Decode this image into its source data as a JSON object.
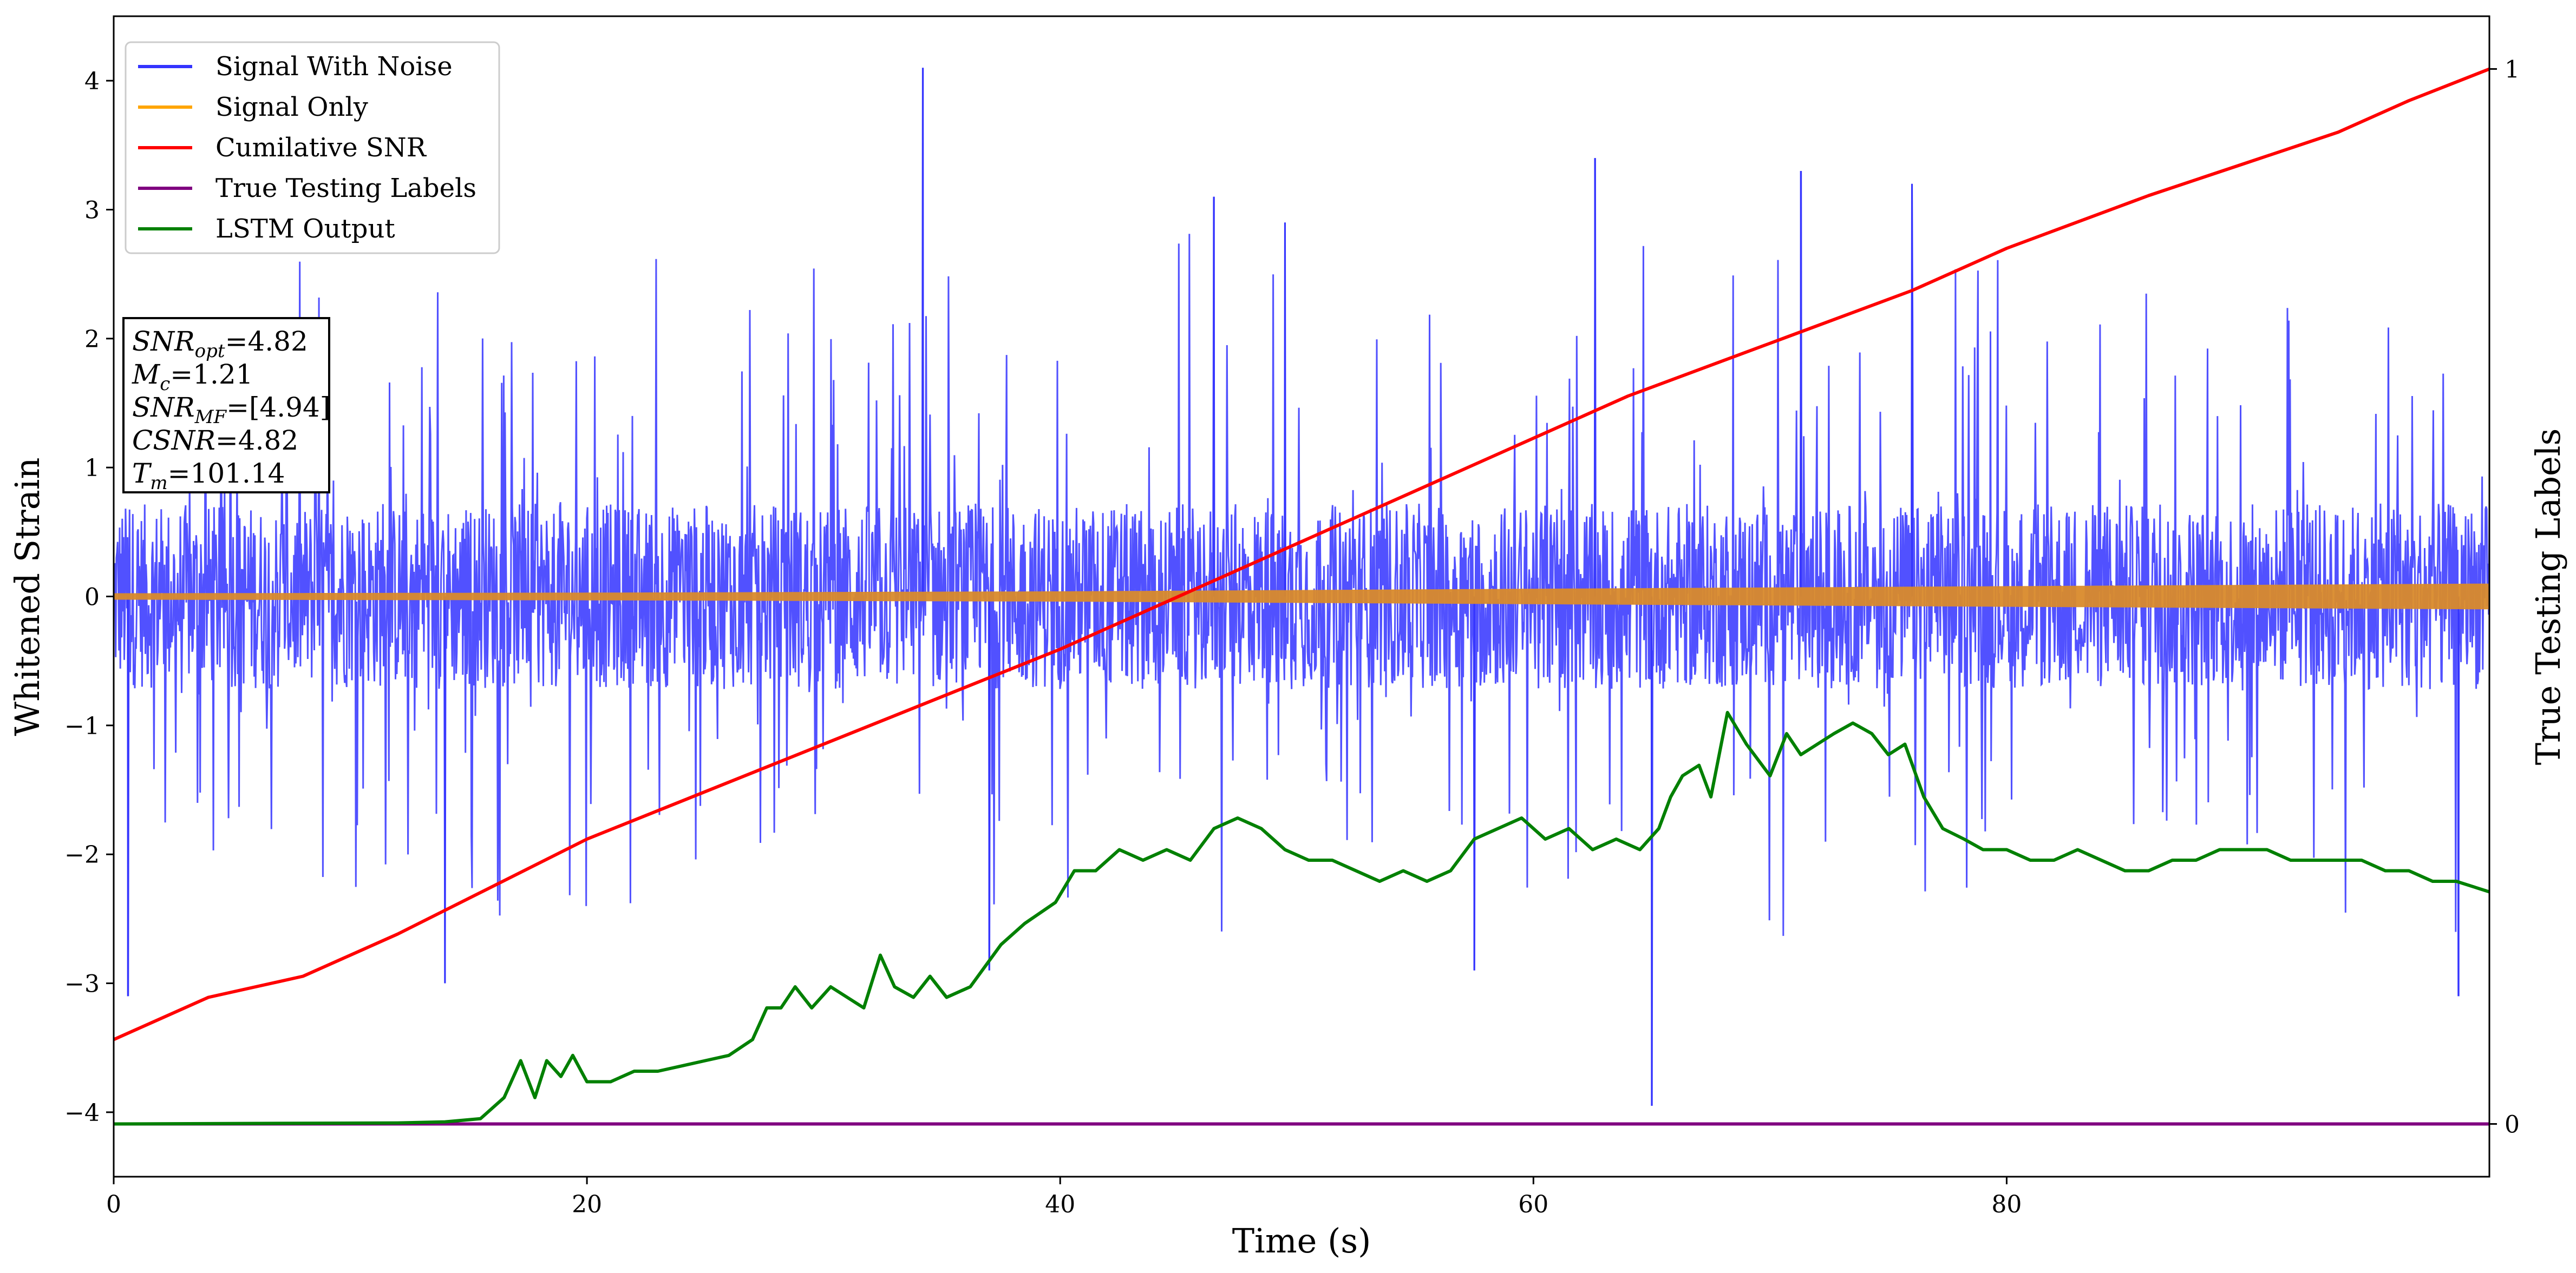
{
  "chart_data": {
    "type": "line",
    "xlabel": "Time (s)",
    "ylabel": "Whitened Strain",
    "y2label": "True Testing Labels",
    "xlim": [
      0,
      100.4
    ],
    "ylim": [
      -4.5,
      4.5
    ],
    "y2lim": [
      -0.05,
      1.05
    ],
    "xticks": [
      0,
      20,
      40,
      60,
      80
    ],
    "yticks": [
      -4,
      -3,
      -2,
      -1,
      0,
      1,
      2,
      3,
      4
    ],
    "y2ticks": [
      0,
      1
    ],
    "legend_position": "upper-left",
    "series": [
      {
        "name": "Signal With Noise",
        "axis": "left",
        "color": "#3333ff",
        "kind": "noise",
        "typical_amplitude": 1.6,
        "peaks": [
          {
            "x": 0.6,
            "y": -3.1
          },
          {
            "x": 14.0,
            "y": -3.0
          },
          {
            "x": 34.2,
            "y": 4.1
          },
          {
            "x": 37.0,
            "y": -2.9
          },
          {
            "x": 46.5,
            "y": 3.1
          },
          {
            "x": 49.5,
            "y": 2.9
          },
          {
            "x": 57.5,
            "y": -2.9
          },
          {
            "x": 62.6,
            "y": 3.4
          },
          {
            "x": 65.0,
            "y": -3.95
          },
          {
            "x": 71.3,
            "y": 3.3
          },
          {
            "x": 76.0,
            "y": 3.2
          },
          {
            "x": 99.1,
            "y": -3.1
          }
        ]
      },
      {
        "name": "Signal Only",
        "axis": "left",
        "color": "#ffa500",
        "kind": "envelope",
        "x": [
          0,
          20,
          40,
          60,
          80,
          100.4
        ],
        "amplitude": [
          0.025,
          0.03,
          0.04,
          0.06,
          0.08,
          0.1
        ]
      },
      {
        "name": "Cumilative SNR",
        "axis": "right",
        "color": "#ff0000",
        "x": [
          0,
          2,
          4,
          6,
          8,
          10,
          12,
          20,
          30,
          40,
          50,
          56,
          60,
          64,
          70,
          76,
          80,
          86,
          90,
          94,
          97,
          100.4
        ],
        "y": [
          0.08,
          0.1,
          0.12,
          0.13,
          0.14,
          0.16,
          0.18,
          0.27,
          0.36,
          0.45,
          0.55,
          0.61,
          0.65,
          0.69,
          0.74,
          0.79,
          0.83,
          0.88,
          0.91,
          0.94,
          0.97,
          1.0
        ]
      },
      {
        "name": "True Testing Labels",
        "axis": "right",
        "color": "#800080",
        "x": [
          0,
          100.4
        ],
        "y": [
          0,
          0
        ]
      },
      {
        "name": "LSTM Output",
        "axis": "right",
        "color": "#008000",
        "x": [
          0,
          12,
          14,
          15.5,
          16.5,
          17.2,
          17.8,
          18.3,
          18.9,
          19.4,
          20,
          21,
          22,
          23,
          24,
          25,
          26,
          27,
          27.6,
          28.2,
          28.8,
          29.5,
          30.3,
          31,
          31.7,
          32.4,
          33,
          33.8,
          34.5,
          35.2,
          36.2,
          37.5,
          38.5,
          39.8,
          40.6,
          41.5,
          42.5,
          43.5,
          44.5,
          45.5,
          46.5,
          47.5,
          48.5,
          49.5,
          50.5,
          51.5,
          52.5,
          53.5,
          54.5,
          55.5,
          56.5,
          57.5,
          58.5,
          59.5,
          60.5,
          61.5,
          62.5,
          63.5,
          64.5,
          65.3,
          65.8,
          66.3,
          67,
          67.5,
          68.2,
          69,
          70,
          70.7,
          71.3,
          72,
          72.7,
          73.5,
          74.3,
          75,
          75.7,
          76.5,
          77.3,
          78.2,
          79,
          80,
          81,
          82,
          83,
          84,
          85,
          86,
          87,
          88,
          89,
          90,
          91,
          92,
          93,
          94,
          95,
          96,
          97,
          98,
          99,
          100.4
        ],
        "y": [
          0,
          0.001,
          0.002,
          0.005,
          0.025,
          0.06,
          0.025,
          0.06,
          0.045,
          0.065,
          0.04,
          0.04,
          0.05,
          0.05,
          0.055,
          0.06,
          0.065,
          0.08,
          0.11,
          0.11,
          0.13,
          0.11,
          0.13,
          0.12,
          0.11,
          0.16,
          0.13,
          0.12,
          0.14,
          0.12,
          0.13,
          0.17,
          0.19,
          0.21,
          0.24,
          0.24,
          0.26,
          0.25,
          0.26,
          0.25,
          0.28,
          0.29,
          0.28,
          0.26,
          0.25,
          0.25,
          0.24,
          0.23,
          0.24,
          0.23,
          0.24,
          0.27,
          0.28,
          0.29,
          0.27,
          0.28,
          0.26,
          0.27,
          0.26,
          0.28,
          0.31,
          0.33,
          0.34,
          0.31,
          0.39,
          0.36,
          0.33,
          0.37,
          0.35,
          0.36,
          0.37,
          0.38,
          0.37,
          0.35,
          0.36,
          0.31,
          0.28,
          0.27,
          0.26,
          0.26,
          0.25,
          0.25,
          0.26,
          0.25,
          0.24,
          0.24,
          0.25,
          0.25,
          0.26,
          0.26,
          0.26,
          0.25,
          0.25,
          0.25,
          0.25,
          0.24,
          0.24,
          0.23,
          0.23,
          0.22
        ]
      }
    ],
    "annotation_lines": [
      {
        "prefix": "SNR",
        "sub": "opt",
        "suffix": "=4.82"
      },
      {
        "prefix": "M",
        "sub": "c",
        "suffix": "=1.21"
      },
      {
        "prefix": "SNR",
        "sub": "MF",
        "suffix": "=[4.94]"
      },
      {
        "prefix": "CSNR",
        "sub": "",
        "suffix": "=4.82"
      },
      {
        "prefix": "T",
        "sub": "m",
        "suffix": "=101.14"
      }
    ]
  }
}
